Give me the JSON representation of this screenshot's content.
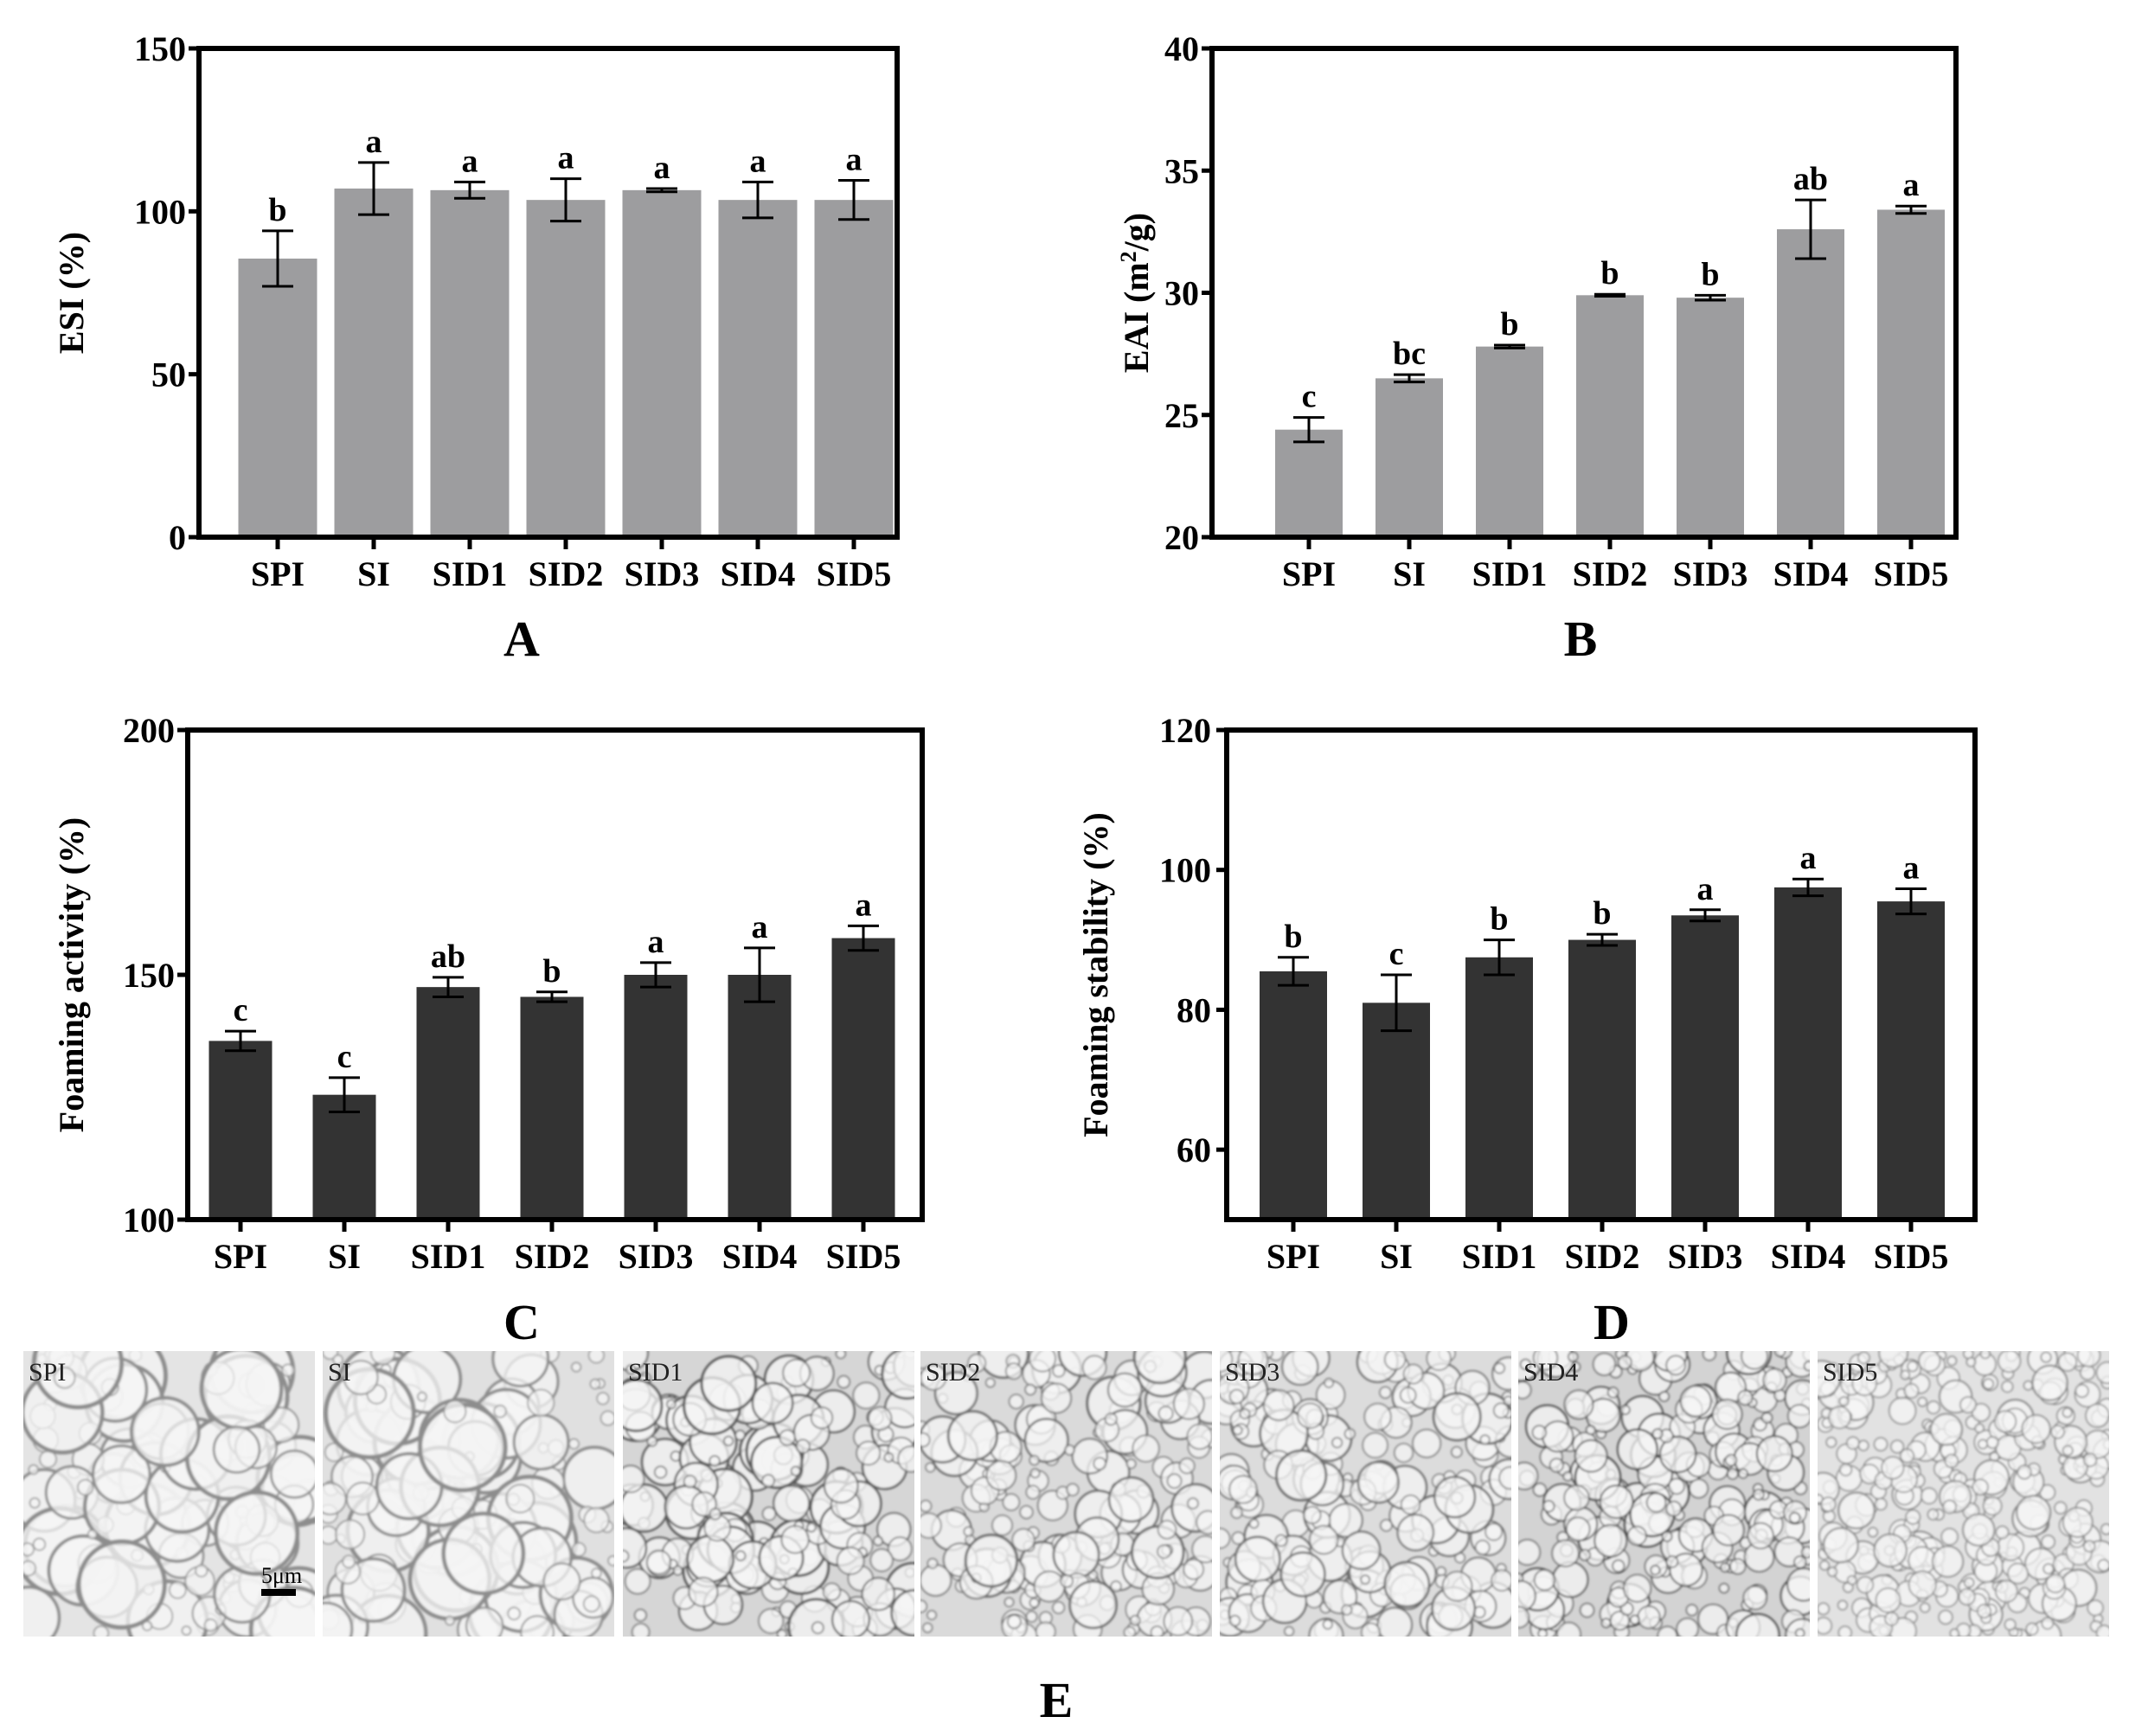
{
  "colors": {
    "light_bar": "#9d9d9f",
    "dark_bar": "#333333",
    "axis": "#000000"
  },
  "chart_data": [
    {
      "type": "bar",
      "panel": "A",
      "ylabel": "ESI (%)",
      "ylim": [
        0,
        150
      ],
      "yticks": [
        0,
        50,
        100,
        150
      ],
      "categories": [
        "SPI",
        "SI",
        "SID1",
        "SID2",
        "SID3",
        "SID4",
        "SID5"
      ],
      "values": [
        85.5,
        107,
        106.5,
        103.5,
        106.5,
        103.5,
        103.5
      ],
      "errors": [
        8.5,
        8,
        2.5,
        6.5,
        0.5,
        5.5,
        6
      ],
      "significance": [
        "b",
        "a",
        "a",
        "a",
        "a",
        "a",
        "a"
      ],
      "bar_color": "light"
    },
    {
      "type": "bar",
      "panel": "B",
      "ylabel": "EAI (m2/g)",
      "ylabel_parts": [
        "EAI (m",
        "2",
        "/g)"
      ],
      "ylim": [
        20,
        40
      ],
      "yticks": [
        20,
        25,
        30,
        35,
        40
      ],
      "categories": [
        "SPI",
        "SI",
        "SID1",
        "SID2",
        "SID3",
        "SID4",
        "SID5"
      ],
      "values": [
        24.4,
        26.5,
        27.8,
        29.9,
        29.8,
        32.6,
        33.4
      ],
      "errors": [
        0.5,
        0.15,
        0.06,
        0.04,
        0.1,
        1.2,
        0.15
      ],
      "significance": [
        "c",
        "bc",
        "b",
        "b",
        "b",
        "ab",
        "a"
      ],
      "bar_color": "light"
    },
    {
      "type": "bar",
      "panel": "C",
      "ylabel": "Foaming activity (%)",
      "ylim": [
        100,
        200
      ],
      "yticks": [
        100,
        150,
        200
      ],
      "categories": [
        "SPI",
        "SI",
        "SID1",
        "SID2",
        "SID3",
        "SID4",
        "SID5"
      ],
      "values": [
        136.5,
        125.5,
        147.5,
        145.5,
        150,
        150,
        157.5
      ],
      "errors": [
        2,
        3.5,
        2,
        1,
        2.5,
        5.5,
        2.5
      ],
      "significance": [
        "c",
        "c",
        "ab",
        "b",
        "a",
        "a",
        "a"
      ],
      "bar_color": "dark"
    },
    {
      "type": "bar",
      "panel": "D",
      "ylabel": "Foaming stability (%)",
      "ylim": [
        50,
        120
      ],
      "yticks": [
        60,
        80,
        100,
        120
      ],
      "categories": [
        "SPI",
        "SI",
        "SID1",
        "SID2",
        "SID3",
        "SID4",
        "SID5"
      ],
      "values": [
        85.5,
        81,
        87.5,
        90,
        93.5,
        97.5,
        95.5
      ],
      "errors": [
        2,
        4,
        2.5,
        0.8,
        0.8,
        1.2,
        1.8
      ],
      "significance": [
        "b",
        "c",
        "b",
        "b",
        "a",
        "a",
        "a"
      ],
      "bar_color": "dark"
    }
  ],
  "micrographs": {
    "panel": "E",
    "labels": [
      "SPI",
      "SI",
      "SID1",
      "SID2",
      "SID3",
      "SID4",
      "SID5"
    ],
    "scale_bar": "5μm"
  }
}
